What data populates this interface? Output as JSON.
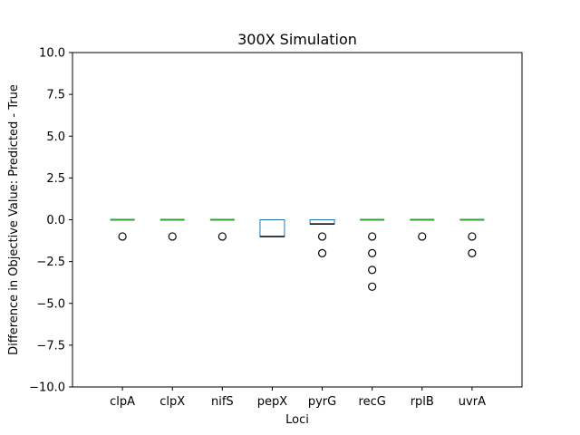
{
  "chart_data": {
    "type": "box",
    "title": "300X Simulation",
    "xlabel": "Loci",
    "ylabel": "Difference in Objective Value: Predicted - True",
    "ylim": [
      -10.0,
      10.0
    ],
    "yticks": [
      "−10.0",
      "−7.5",
      "−5.0",
      "−2.5",
      "0.0",
      "2.5",
      "5.0",
      "7.5",
      "10.0"
    ],
    "ytick_values": [
      -10.0,
      -7.5,
      -5.0,
      -2.5,
      0.0,
      2.5,
      5.0,
      7.5,
      10.0
    ],
    "grid": false,
    "colors": {
      "box": "#1f77b4",
      "median": "#2ca02c",
      "whisker": "#1f77b4",
      "flier": "#000000"
    },
    "categories": [
      "clpA",
      "clpX",
      "nifS",
      "pepX",
      "pyrG",
      "recG",
      "rplB",
      "uvrA"
    ],
    "boxes": [
      {
        "name": "clpA",
        "q1": 0,
        "median": 0,
        "q3": 0,
        "whislo": 0,
        "whishi": 0,
        "fliers": [
          -1
        ]
      },
      {
        "name": "clpX",
        "q1": 0,
        "median": 0,
        "q3": 0,
        "whislo": 0,
        "whishi": 0,
        "fliers": [
          -1
        ]
      },
      {
        "name": "nifS",
        "q1": 0,
        "median": 0,
        "q3": 0,
        "whislo": 0,
        "whishi": 0,
        "fliers": [
          -1
        ]
      },
      {
        "name": "pepX",
        "q1": -1,
        "median": -1,
        "q3": 0,
        "whislo": -1,
        "whishi": 0,
        "fliers": []
      },
      {
        "name": "pyrG",
        "q1": -0.25,
        "median": -0.25,
        "q3": 0,
        "whislo": -0.25,
        "whishi": 0,
        "fliers": [
          -1,
          -2
        ]
      },
      {
        "name": "recG",
        "q1": 0,
        "median": 0,
        "q3": 0,
        "whislo": 0,
        "whishi": 0,
        "fliers": [
          -1,
          -2,
          -3,
          -4
        ]
      },
      {
        "name": "rplB",
        "q1": 0,
        "median": 0,
        "q3": 0,
        "whislo": 0,
        "whishi": 0,
        "fliers": [
          -1
        ]
      },
      {
        "name": "uvrA",
        "q1": 0,
        "median": 0,
        "q3": 0,
        "whislo": 0,
        "whishi": 0,
        "fliers": [
          -1,
          -2
        ]
      }
    ]
  }
}
